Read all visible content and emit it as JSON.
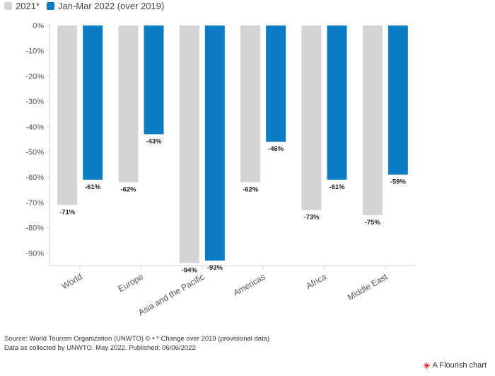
{
  "legend": [
    {
      "label": "2021*",
      "color": "#d4d4d4"
    },
    {
      "label": "Jan-Mar 2022 (over 2019)",
      "color": "#0c7cc5"
    }
  ],
  "chart_data": {
    "type": "bar",
    "categories": [
      "World",
      "Europe",
      "Asia and the Pacific",
      "Americas",
      "Africa",
      "Middle East"
    ],
    "series": [
      {
        "name": "2021*",
        "values": [
          -71,
          -62,
          -94,
          -62,
          -73,
          -75
        ],
        "labels": [
          "-71%",
          "-62%",
          "-94%",
          "-62%",
          "-73%",
          "-75%"
        ],
        "color": "#d4d4d4"
      },
      {
        "name": "Jan-Mar 2022 (over 2019)",
        "values": [
          -61,
          -43,
          -93,
          -46,
          -61,
          -59
        ],
        "labels": [
          "-61%",
          "-43%",
          "-93%",
          "-46%",
          "-61%",
          "-59%"
        ],
        "color": "#0c7cc5"
      }
    ],
    "ylim": [
      -95,
      0
    ],
    "yticks": [
      0,
      -10,
      -20,
      -30,
      -40,
      -50,
      -60,
      -70,
      -80,
      -90
    ],
    "ytick_labels": [
      "0%",
      "-10%",
      "-20%",
      "-30%",
      "-40%",
      "-50%",
      "-60%",
      "-70%",
      "-80%",
      "-90%"
    ],
    "grid": false,
    "legend_position": "top-left"
  },
  "footer": {
    "source_line": "Source: World Tourism Organization (UNWTO) © • * Change over 2019 (provisional data)",
    "data_line": "Data as collected by UNWTO, May 2022. Published: 06/06/2022"
  },
  "credit": {
    "label": "A Flourish chart",
    "icon": "flourish-logo-icon"
  }
}
